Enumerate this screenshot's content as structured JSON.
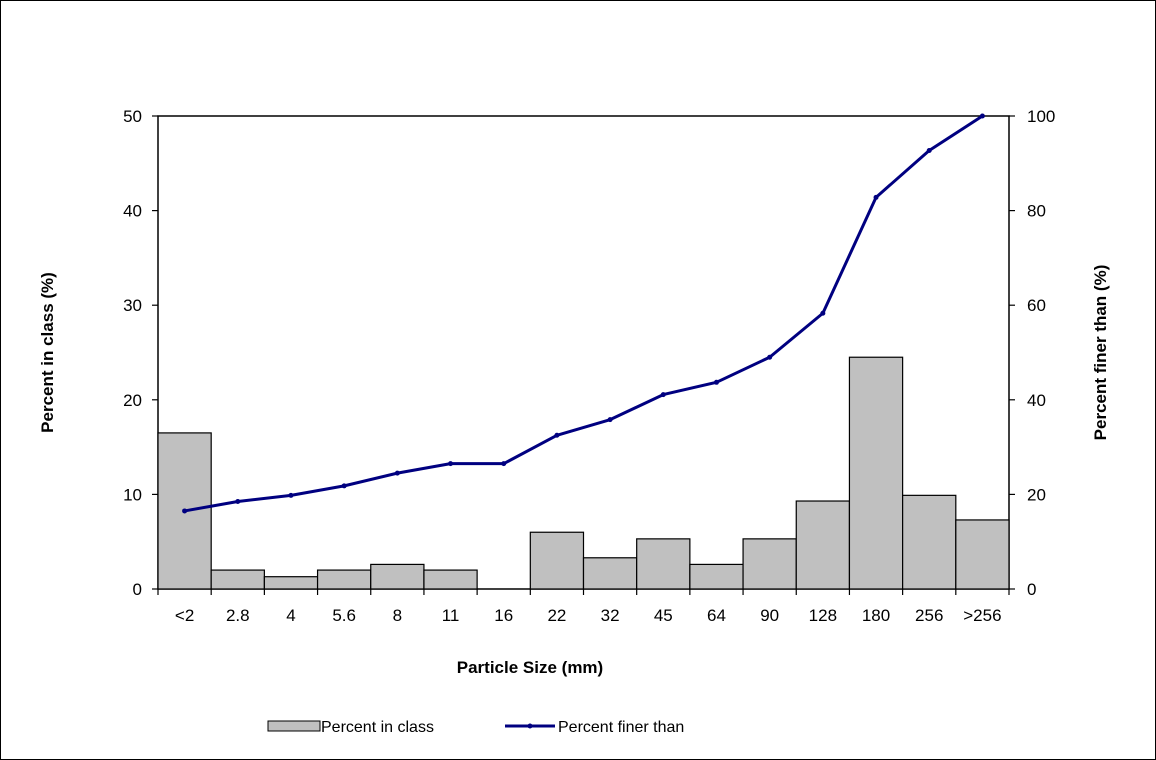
{
  "chart_data": {
    "type": "bar",
    "categories": [
      "<2",
      "2.8",
      "4",
      "5.6",
      "8",
      "11",
      "16",
      "22",
      "32",
      "45",
      "64",
      "90",
      "128",
      "180",
      "256",
      ">256"
    ],
    "series": [
      {
        "name": "Percent in class",
        "type": "bar",
        "axis": "left",
        "color": "#c0c0c0",
        "values": [
          16.5,
          2.0,
          1.3,
          2.0,
          2.6,
          2.0,
          0,
          6.0,
          3.3,
          5.3,
          2.6,
          5.3,
          9.3,
          24.5,
          9.9,
          7.3
        ]
      },
      {
        "name": "Percent finer than",
        "type": "line",
        "axis": "right",
        "color": "#000080",
        "values": [
          16.5,
          18.5,
          19.8,
          21.8,
          24.5,
          26.5,
          26.5,
          32.5,
          35.8,
          41.1,
          43.7,
          49.0,
          58.3,
          82.8,
          92.7,
          100
        ]
      }
    ],
    "xlabel": "Particle Size (mm)",
    "ylabel": "Percent in class (%)",
    "y2label": "Percent finer than (%)",
    "ylim": [
      0,
      50
    ],
    "y2lim": [
      0,
      100
    ],
    "yticks": [
      "0",
      "10",
      "20",
      "30",
      "40",
      "50"
    ],
    "y2ticks": [
      "0",
      "20",
      "40",
      "60",
      "80",
      "100"
    ],
    "grid": false,
    "legend_position": "bottom"
  }
}
